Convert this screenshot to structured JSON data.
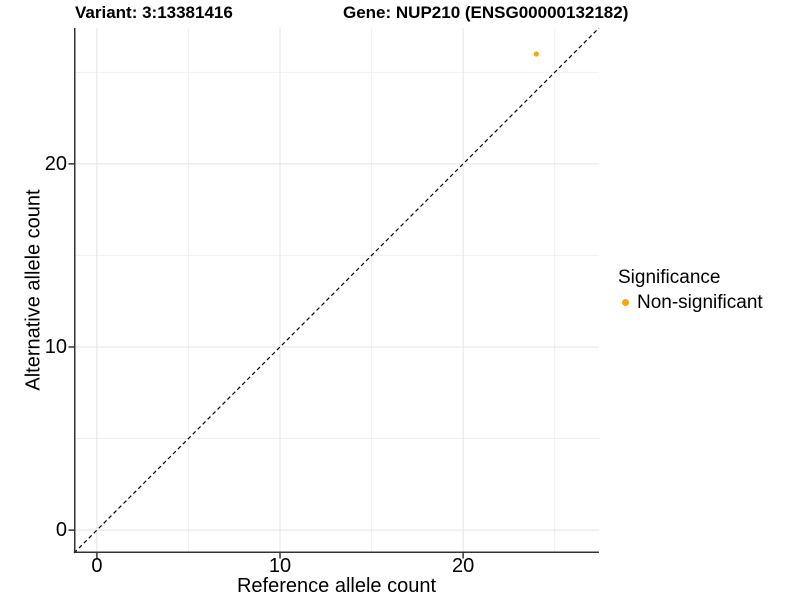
{
  "header": {
    "variant_title": "Variant: 3:13381416",
    "gene_title": "Gene: NUP210 (ENSG00000132182)"
  },
  "chart_data": {
    "type": "scatter",
    "xlabel": "Reference allele count",
    "ylabel": "Alternative allele count",
    "xlim": [
      -1.25,
      27.42
    ],
    "ylim": [
      -1.25,
      27.42
    ],
    "x_ticks": [
      0,
      10,
      20
    ],
    "y_ticks": [
      0,
      10,
      20
    ],
    "x_minor_ticks": [
      5,
      15,
      25
    ],
    "y_minor_ticks": [
      5,
      15,
      25
    ],
    "grid": true,
    "identity_line": {
      "style": "dashed",
      "from": [
        -1.25,
        -1.25
      ],
      "to": [
        27.42,
        27.42
      ]
    },
    "series": [
      {
        "name": "Non-significant",
        "points": [
          {
            "x": 24,
            "y": 26
          }
        ]
      }
    ],
    "legend": {
      "title": "Significance",
      "position": "right",
      "entries": [
        {
          "label": "Non-significant"
        }
      ]
    }
  },
  "colors": {
    "point": "#FFA500",
    "axis": "#333333",
    "grid_major": "#E4E4E4",
    "grid_minor": "#F0F0F0",
    "dashed_line": "#000000",
    "text": "#000000",
    "background": "#FFFFFF"
  }
}
